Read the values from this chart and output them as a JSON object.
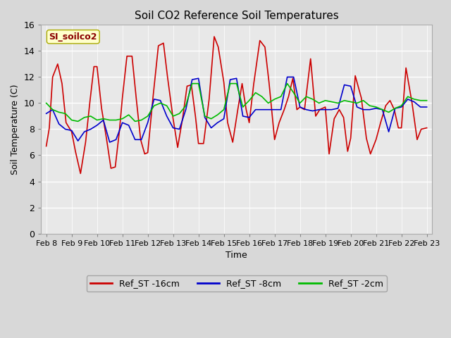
{
  "title": "Soil CO2 Reference Soil Temperatures",
  "xlabel": "Time",
  "ylabel": "Soil Temperature (C)",
  "ylim": [
    0,
    16
  ],
  "yticks": [
    0,
    2,
    4,
    6,
    8,
    10,
    12,
    14,
    16
  ],
  "fig_bg": "#d8d8d8",
  "plot_bg": "#e8e8e8",
  "legend_label": "SI_soilco2",
  "series_labels": [
    "Ref_ST -16cm",
    "Ref_ST -8cm",
    "Ref_ST -2cm"
  ],
  "series_colors": [
    "#cc0000",
    "#0000cc",
    "#00bb00"
  ],
  "xtick_labels": [
    "Feb 8",
    "Feb 9",
    "Feb 10",
    "Feb 11",
    "Feb 12",
    "Feb 13",
    "Feb 14",
    "Feb 15",
    "Feb 16",
    "Feb 17",
    "Feb 18",
    "Feb 19",
    "Feb 20",
    "Feb 21",
    "Feb 22",
    "Feb 23"
  ],
  "red_x": [
    0.0,
    0.12,
    0.25,
    0.45,
    0.62,
    0.78,
    1.0,
    1.15,
    1.35,
    1.55,
    1.72,
    1.88,
    2.0,
    2.18,
    2.38,
    2.55,
    2.72,
    2.88,
    3.0,
    3.18,
    3.38,
    3.55,
    3.72,
    3.88,
    4.0,
    4.2,
    4.42,
    4.62,
    4.78,
    5.0,
    5.18,
    5.38,
    5.55,
    5.72,
    5.88,
    6.0,
    6.2,
    6.42,
    6.62,
    6.78,
    7.0,
    7.15,
    7.35,
    7.55,
    7.72,
    7.88,
    8.0,
    8.18,
    8.42,
    8.62,
    8.78,
    9.0,
    9.18,
    9.38,
    9.55,
    9.72,
    9.88,
    10.0,
    10.18,
    10.42,
    10.62,
    10.78,
    11.0,
    11.15,
    11.35,
    11.55,
    11.72,
    11.88,
    12.0,
    12.18,
    12.42,
    12.62,
    12.78,
    13.0,
    13.18,
    13.38,
    13.55,
    13.72,
    13.88,
    14.0,
    14.18,
    14.42,
    14.62,
    14.78,
    15.0
  ],
  "red_y": [
    6.7,
    8.1,
    12.0,
    13.0,
    11.5,
    8.5,
    7.8,
    6.3,
    4.6,
    7.0,
    10.1,
    12.8,
    12.8,
    9.6,
    7.2,
    5.0,
    5.1,
    7.8,
    10.4,
    13.6,
    13.6,
    10.3,
    7.2,
    6.1,
    6.2,
    10.3,
    14.4,
    14.6,
    12.0,
    8.8,
    6.6,
    8.9,
    11.3,
    11.4,
    9.0,
    6.9,
    6.9,
    10.3,
    15.1,
    14.3,
    11.6,
    8.5,
    7.0,
    9.5,
    11.5,
    9.5,
    8.5,
    11.5,
    14.8,
    14.3,
    11.6,
    7.2,
    8.5,
    9.5,
    10.5,
    11.9,
    9.5,
    9.7,
    9.5,
    13.4,
    9.0,
    9.5,
    9.7,
    6.1,
    8.8,
    9.5,
    8.9,
    6.3,
    7.3,
    12.1,
    10.4,
    7.3,
    6.1,
    7.2,
    8.5,
    9.8,
    10.2,
    9.5,
    8.1,
    8.1,
    12.7,
    10.0,
    7.2,
    8.0,
    8.1
  ],
  "blue_x": [
    0.0,
    0.25,
    0.5,
    0.75,
    1.0,
    1.25,
    1.5,
    1.75,
    2.0,
    2.25,
    2.5,
    2.75,
    3.0,
    3.25,
    3.5,
    3.75,
    4.0,
    4.25,
    4.5,
    4.75,
    5.0,
    5.25,
    5.5,
    5.75,
    6.0,
    6.25,
    6.5,
    6.75,
    7.0,
    7.25,
    7.5,
    7.75,
    8.0,
    8.25,
    8.5,
    8.75,
    9.0,
    9.25,
    9.5,
    9.75,
    10.0,
    10.25,
    10.5,
    10.75,
    11.0,
    11.25,
    11.5,
    11.75,
    12.0,
    12.25,
    12.5,
    12.75,
    13.0,
    13.25,
    13.5,
    13.75,
    14.0,
    14.25,
    14.5,
    14.75,
    15.0
  ],
  "blue_y": [
    9.2,
    9.5,
    8.4,
    8.0,
    7.9,
    7.1,
    7.8,
    8.0,
    8.3,
    8.7,
    7.0,
    7.2,
    8.5,
    8.3,
    7.2,
    7.2,
    8.5,
    10.3,
    10.2,
    9.0,
    8.1,
    8.0,
    9.5,
    11.8,
    11.9,
    8.9,
    8.1,
    8.5,
    8.8,
    11.8,
    11.9,
    9.0,
    8.9,
    9.5,
    9.5,
    9.5,
    9.5,
    9.5,
    12.0,
    12.0,
    9.7,
    9.5,
    9.4,
    9.5,
    9.5,
    9.5,
    9.6,
    11.4,
    11.3,
    9.7,
    9.5,
    9.5,
    9.6,
    9.5,
    7.8,
    9.6,
    9.7,
    10.3,
    10.1,
    9.7,
    9.7
  ],
  "green_x": [
    0.0,
    0.25,
    0.5,
    0.75,
    1.0,
    1.25,
    1.5,
    1.75,
    2.0,
    2.25,
    2.5,
    2.75,
    3.0,
    3.25,
    3.5,
    3.75,
    4.0,
    4.25,
    4.5,
    4.75,
    5.0,
    5.25,
    5.5,
    5.75,
    6.0,
    6.25,
    6.5,
    6.75,
    7.0,
    7.25,
    7.5,
    7.75,
    8.0,
    8.25,
    8.5,
    8.75,
    9.0,
    9.25,
    9.5,
    9.75,
    10.0,
    10.25,
    10.5,
    10.75,
    11.0,
    11.25,
    11.5,
    11.75,
    12.0,
    12.25,
    12.5,
    12.75,
    13.0,
    13.25,
    13.5,
    13.75,
    14.0,
    14.25,
    14.5,
    14.75,
    15.0
  ],
  "green_y": [
    10.0,
    9.5,
    9.3,
    9.2,
    8.7,
    8.6,
    8.9,
    9.0,
    8.7,
    8.8,
    8.7,
    8.7,
    8.8,
    9.1,
    8.6,
    8.7,
    9.0,
    9.8,
    10.0,
    9.8,
    9.0,
    9.2,
    9.8,
    11.5,
    11.5,
    9.0,
    8.8,
    9.1,
    9.5,
    11.5,
    11.5,
    9.7,
    10.2,
    10.8,
    10.5,
    10.0,
    10.3,
    10.5,
    11.5,
    10.8,
    10.0,
    10.5,
    10.3,
    10.0,
    10.2,
    10.1,
    10.0,
    10.2,
    10.1,
    10.0,
    10.2,
    9.8,
    9.7,
    9.5,
    9.3,
    9.6,
    9.8,
    10.5,
    10.3,
    10.2,
    10.2
  ]
}
